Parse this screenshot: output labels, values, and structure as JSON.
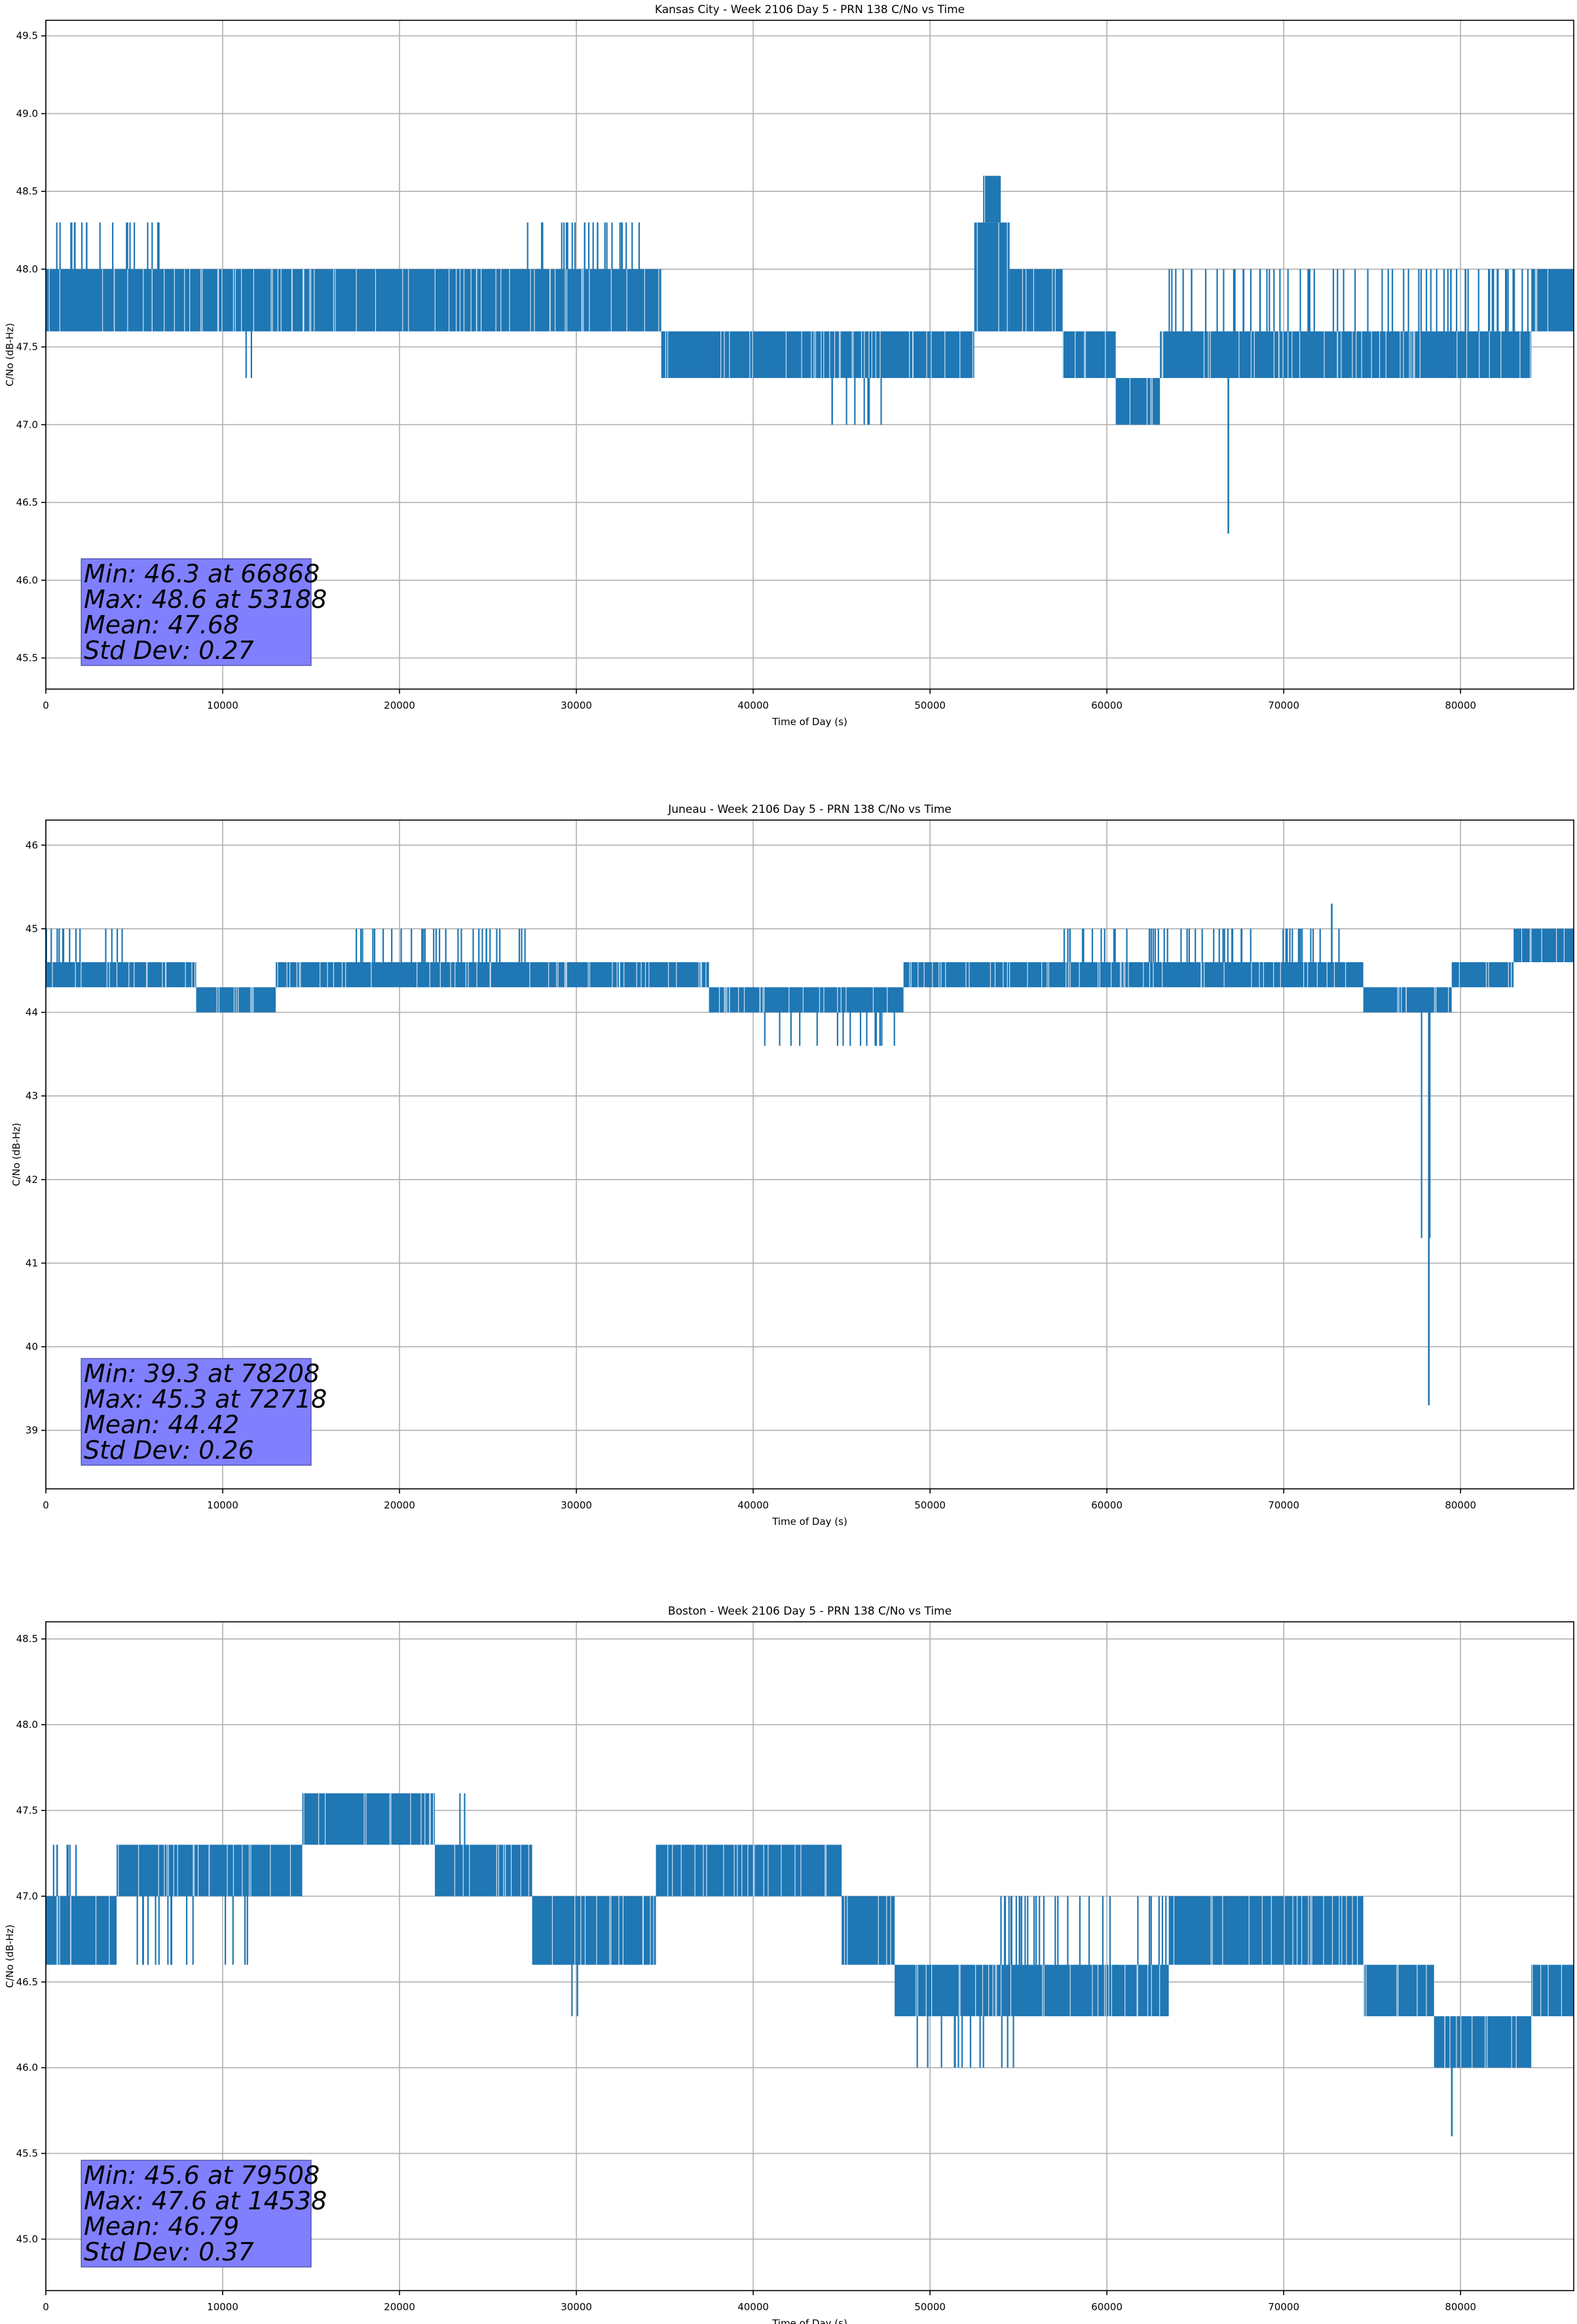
{
  "figure": {
    "background": "#ffffff",
    "line_color": "#1f77b4",
    "stats_box_color": "#8080ff"
  },
  "chart_data": [
    {
      "type": "line",
      "title": "Kansas City - Week 2106 Day 5 - PRN 138 C/No vs Time",
      "xlabel": "Time of Day (s)",
      "ylabel": "C/No (dB-Hz)",
      "xlim": [
        0,
        86400
      ],
      "ylim": [
        45.3,
        49.6
      ],
      "xticks": [
        0,
        10000,
        20000,
        30000,
        40000,
        50000,
        60000,
        70000,
        80000
      ],
      "yticks": [
        45.5,
        46.0,
        46.5,
        47.0,
        47.5,
        48.0,
        48.5,
        49.0,
        49.5
      ],
      "ytick_labels": [
        "45.5",
        "46.0",
        "46.5",
        "47.0",
        "47.5",
        "48.0",
        "48.5",
        "49.0",
        "49.5"
      ],
      "grid": true,
      "series": [
        {
          "color": "#1f77b4",
          "bands": [
            {
              "x": [
                0,
                34800
              ],
              "low": 47.6,
              "high": 48.0
            },
            {
              "x": [
                34800,
                52500
              ],
              "low": 47.3,
              "high": 47.6
            },
            {
              "x": [
                52500,
                54500
              ],
              "low": 47.6,
              "high": 48.3
            },
            {
              "x": [
                53000,
                54000
              ],
              "low": 48.3,
              "high": 48.6
            },
            {
              "x": [
                54500,
                57500
              ],
              "low": 47.6,
              "high": 48.0
            },
            {
              "x": [
                57500,
                60500
              ],
              "low": 47.3,
              "high": 47.6
            },
            {
              "x": [
                60500,
                63000
              ],
              "low": 47.0,
              "high": 47.3
            },
            {
              "x": [
                63000,
                84000
              ],
              "low": 47.3,
              "high": 47.6
            },
            {
              "x": [
                84000,
                86400
              ],
              "low": 47.6,
              "high": 48.0
            }
          ],
          "spikes_up": [
            {
              "x": [
                0,
                6500
              ],
              "top": 48.3
            },
            {
              "x": [
                27000,
                35000
              ],
              "top": 48.3
            },
            {
              "x": [
                63000,
                84000
              ],
              "top": 48.0
            }
          ],
          "spikes_down": [
            {
              "x": [
                11000,
                12000
              ],
              "bottom": 47.3
            },
            {
              "x": [
                41000,
                44000
              ],
              "bottom": 47.3
            },
            {
              "x": [
                44000,
                48000
              ],
              "bottom": 47.0
            }
          ],
          "extremes": [
            {
              "x": 66868,
              "y": 46.3
            },
            {
              "x": 53188,
              "y": 48.6
            }
          ]
        }
      ],
      "stats": [
        "Min: 46.3 at 66868",
        "Max: 48.6 at 53188",
        "Mean: 47.68",
        "Std Dev: 0.27"
      ]
    },
    {
      "type": "line",
      "title": "Juneau - Week 2106 Day 5 - PRN 138 C/No vs Time",
      "xlabel": "Time of Day (s)",
      "ylabel": "C/No (dB-Hz)",
      "xlim": [
        0,
        86400
      ],
      "ylim": [
        38.3,
        46.3
      ],
      "xticks": [
        0,
        10000,
        20000,
        30000,
        40000,
        50000,
        60000,
        70000,
        80000
      ],
      "yticks": [
        39,
        40,
        41,
        42,
        43,
        44,
        45,
        46
      ],
      "ytick_labels": [
        "39",
        "40",
        "41",
        "42",
        "43",
        "44",
        "45",
        "46"
      ],
      "grid": true,
      "series": [
        {
          "color": "#1f77b4",
          "bands": [
            {
              "x": [
                0,
                8500
              ],
              "low": 44.3,
              "high": 44.6
            },
            {
              "x": [
                8500,
                13000
              ],
              "low": 44.0,
              "high": 44.3
            },
            {
              "x": [
                13000,
                37500
              ],
              "low": 44.3,
              "high": 44.6
            },
            {
              "x": [
                37500,
                48500
              ],
              "low": 44.0,
              "high": 44.3
            },
            {
              "x": [
                48500,
                74500
              ],
              "low": 44.3,
              "high": 44.6
            },
            {
              "x": [
                74500,
                79500
              ],
              "low": 44.0,
              "high": 44.3
            },
            {
              "x": [
                79500,
                83000
              ],
              "low": 44.3,
              "high": 44.6
            },
            {
              "x": [
                83000,
                86400
              ],
              "low": 44.6,
              "high": 45.0
            }
          ],
          "spikes_up": [
            {
              "x": [
                0,
                4500
              ],
              "top": 45.0
            },
            {
              "x": [
                17500,
                27500
              ],
              "top": 45.0
            },
            {
              "x": [
                57500,
                73500
              ],
              "top": 45.0
            }
          ],
          "spikes_down": [
            {
              "x": [
                40500,
                48000
              ],
              "bottom": 43.6
            },
            {
              "x": [
                77500,
                78500
              ],
              "bottom": 41.3
            }
          ],
          "extremes": [
            {
              "x": 78208,
              "y": 39.3
            },
            {
              "x": 72718,
              "y": 45.3
            }
          ]
        }
      ],
      "stats": [
        "Min: 39.3 at 78208",
        "Max: 45.3 at 72718",
        "Mean: 44.42",
        "Std Dev: 0.26"
      ]
    },
    {
      "type": "line",
      "title": "Boston - Week 2106 Day 5 - PRN 138 C/No vs Time",
      "xlabel": "Time of Day (s)",
      "ylabel": "C/No (dB-Hz)",
      "xlim": [
        0,
        86400
      ],
      "ylim": [
        44.7,
        48.6
      ],
      "xticks": [
        0,
        10000,
        20000,
        30000,
        40000,
        50000,
        60000,
        70000,
        80000
      ],
      "yticks": [
        45.0,
        45.5,
        46.0,
        46.5,
        47.0,
        47.5,
        48.0,
        48.5
      ],
      "ytick_labels": [
        "45.0",
        "45.5",
        "46.0",
        "46.5",
        "47.0",
        "47.5",
        "48.0",
        "48.5"
      ],
      "grid": true,
      "series": [
        {
          "color": "#1f77b4",
          "bands": [
            {
              "x": [
                0,
                4000
              ],
              "low": 46.6,
              "high": 47.0
            },
            {
              "x": [
                4000,
                14500
              ],
              "low": 47.0,
              "high": 47.3
            },
            {
              "x": [
                14500,
                22000
              ],
              "low": 47.3,
              "high": 47.6
            },
            {
              "x": [
                22000,
                27500
              ],
              "low": 47.0,
              "high": 47.3
            },
            {
              "x": [
                27500,
                34500
              ],
              "low": 46.6,
              "high": 47.0
            },
            {
              "x": [
                34500,
                45000
              ],
              "low": 47.0,
              "high": 47.3
            },
            {
              "x": [
                45000,
                48000
              ],
              "low": 46.6,
              "high": 47.0
            },
            {
              "x": [
                48000,
                63500
              ],
              "low": 46.3,
              "high": 46.6
            },
            {
              "x": [
                63500,
                74500
              ],
              "low": 46.6,
              "high": 47.0
            },
            {
              "x": [
                74500,
                78500
              ],
              "low": 46.3,
              "high": 46.6
            },
            {
              "x": [
                78500,
                84000
              ],
              "low": 46.0,
              "high": 46.3
            },
            {
              "x": [
                84000,
                86400
              ],
              "low": 46.3,
              "high": 46.6
            }
          ],
          "spikes_up": [
            {
              "x": [
                0,
                2500
              ],
              "top": 47.3
            },
            {
              "x": [
                19000,
                24000
              ],
              "top": 47.6
            },
            {
              "x": [
                54000,
                72000
              ],
              "top": 47.0
            }
          ],
          "spikes_down": [
            {
              "x": [
                5000,
                12000
              ],
              "bottom": 46.6
            },
            {
              "x": [
                49000,
                55000
              ],
              "bottom": 46.0
            },
            {
              "x": [
                29500,
                30500
              ],
              "bottom": 46.3
            }
          ],
          "extremes": [
            {
              "x": 79508,
              "y": 45.6
            },
            {
              "x": 14538,
              "y": 47.6
            }
          ]
        }
      ],
      "stats": [
        "Min: 45.6 at 79508",
        "Max: 47.6 at 14538",
        "Mean: 46.79",
        "Std Dev: 0.37"
      ]
    }
  ]
}
